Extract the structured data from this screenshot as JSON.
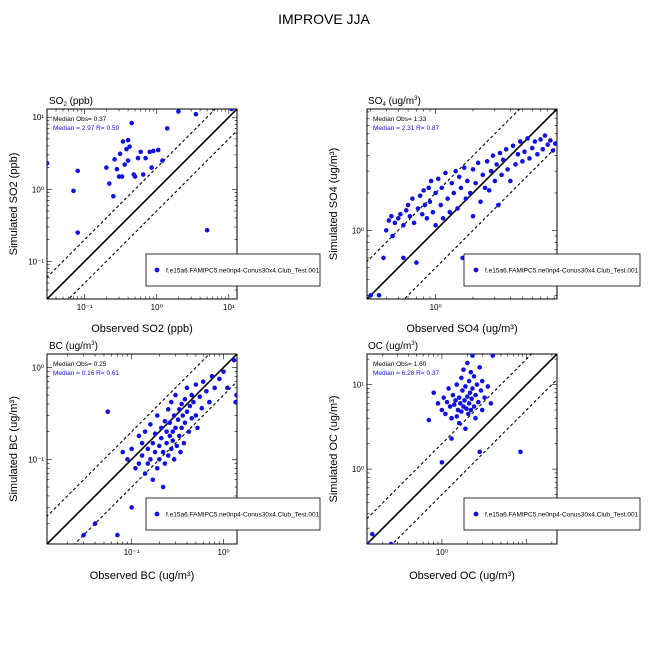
{
  "figure_title": "IMPROVE JJA",
  "colors": {
    "points": "#1010e0",
    "obs_text": "#000000",
    "sim_text": "#1010e0",
    "lines": "#000000"
  },
  "chart_data": [
    {
      "type": "scatter",
      "log_scale": true,
      "title_main": "SO",
      "title_sub": "2",
      "title_unit": " (ppb)",
      "xlabel": "Observed SO2 (ppb)",
      "ylabel": "Simulated SO2 (ppb)",
      "xlim": [
        0.03,
        13
      ],
      "ylim": [
        0.03,
        13
      ],
      "xticks": [
        {
          "v": 0.1,
          "label": "10⁻¹"
        },
        {
          "v": 1,
          "label": "10⁰"
        },
        {
          "v": 10,
          "label": "10¹"
        }
      ],
      "yticks": [
        {
          "v": 0.1,
          "label": "10⁻¹"
        },
        {
          "v": 1,
          "label": "10⁰"
        },
        {
          "v": 10,
          "label": "10¹"
        }
      ],
      "median_obs_label": "Median Obs= 0.37",
      "median_sim_label": "Median = 2.97 R= 0.59",
      "legend_label": "f.e15a6.FAMIPC5.ne0np4-Conus30x4.Club_Test.001",
      "points": [
        [
          0.03,
          2.3
        ],
        [
          0.07,
          0.95
        ],
        [
          0.08,
          0.25
        ],
        [
          0.08,
          1.8
        ],
        [
          0.2,
          2.0
        ],
        [
          0.22,
          1.2
        ],
        [
          0.25,
          0.8
        ],
        [
          0.26,
          2.6
        ],
        [
          0.28,
          1.9
        ],
        [
          0.3,
          1.5
        ],
        [
          0.31,
          3.1
        ],
        [
          0.33,
          1.5
        ],
        [
          0.34,
          4.6
        ],
        [
          0.36,
          2.2
        ],
        [
          0.38,
          3.6
        ],
        [
          0.4,
          4.8
        ],
        [
          0.4,
          2.5
        ],
        [
          0.42,
          3.9
        ],
        [
          0.45,
          8.3
        ],
        [
          0.48,
          1.6
        ],
        [
          0.5,
          1.5
        ],
        [
          0.55,
          2.7
        ],
        [
          0.6,
          3.3
        ],
        [
          0.65,
          1.6
        ],
        [
          0.7,
          2.7
        ],
        [
          0.8,
          3.3
        ],
        [
          0.85,
          2.0
        ],
        [
          0.9,
          3.4
        ],
        [
          1.05,
          3.5
        ],
        [
          1.2,
          2.5
        ],
        [
          1.4,
          7.0
        ],
        [
          2.0,
          12.0
        ],
        [
          3.5,
          11.0
        ],
        [
          5.0,
          0.27
        ],
        [
          11.0,
          13.0
        ]
      ]
    },
    {
      "type": "scatter",
      "log_scale": true,
      "title_main": "SO",
      "title_sub": "4",
      "title_unit": " (ug/m",
      "title_sup": "3",
      "title_end": ")",
      "xlabel": "Observed SO4 (ug/m³)",
      "ylabel": "Simulated SO4 (ug/m³)",
      "xlim": [
        0.28,
        9.5
      ],
      "ylim": [
        0.28,
        9.5
      ],
      "xticks": [
        {
          "v": 1,
          "label": "10⁰"
        }
      ],
      "yticks": [
        {
          "v": 1,
          "label": "10⁰"
        }
      ],
      "median_obs_label": "Median Obs= 1.33",
      "median_sim_label": "Median = 2.31 R= 0.87",
      "legend_label": "f.e15a6.FAMIPC5.ne0np4-Conus30x4.Club_Test.001",
      "points": [
        [
          0.3,
          0.3
        ],
        [
          0.35,
          0.3
        ],
        [
          0.38,
          0.6
        ],
        [
          0.4,
          1.0
        ],
        [
          0.42,
          1.2
        ],
        [
          0.44,
          1.3
        ],
        [
          0.45,
          0.9
        ],
        [
          0.47,
          1.15
        ],
        [
          0.5,
          1.25
        ],
        [
          0.52,
          1.35
        ],
        [
          0.55,
          1.1
        ],
        [
          0.55,
          0.6
        ],
        [
          0.58,
          1.45
        ],
        [
          0.6,
          1.6
        ],
        [
          0.62,
          1.3
        ],
        [
          0.65,
          1.8
        ],
        [
          0.67,
          1.15
        ],
        [
          0.7,
          0.55
        ],
        [
          0.72,
          1.5
        ],
        [
          0.75,
          1.9
        ],
        [
          0.78,
          1.35
        ],
        [
          0.8,
          2.1
        ],
        [
          0.82,
          1.6
        ],
        [
          0.85,
          1.25
        ],
        [
          0.88,
          2.2
        ],
        [
          0.9,
          1.7
        ],
        [
          0.92,
          2.5
        ],
        [
          0.95,
          1.4
        ],
        [
          1.0,
          2.0
        ],
        [
          1.0,
          1.1
        ],
        [
          1.05,
          2.6
        ],
        [
          1.1,
          1.6
        ],
        [
          1.12,
          2.2
        ],
        [
          1.15,
          1.25
        ],
        [
          1.2,
          2.9
        ],
        [
          1.25,
          1.8
        ],
        [
          1.3,
          1.4
        ],
        [
          1.35,
          2.4
        ],
        [
          1.4,
          2.0
        ],
        [
          1.45,
          3.0
        ],
        [
          1.5,
          1.5
        ],
        [
          1.55,
          2.7
        ],
        [
          1.6,
          2.2
        ],
        [
          1.65,
          0.6
        ],
        [
          1.7,
          3.2
        ],
        [
          1.75,
          1.8
        ],
        [
          1.8,
          2.5
        ],
        [
          1.9,
          2.0
        ],
        [
          2.0,
          3.1
        ],
        [
          2.0,
          1.3
        ],
        [
          2.1,
          2.4
        ],
        [
          2.2,
          3.5
        ],
        [
          2.3,
          1.7
        ],
        [
          2.4,
          2.8
        ],
        [
          2.5,
          2.2
        ],
        [
          2.6,
          3.6
        ],
        [
          2.7,
          2.1
        ],
        [
          2.8,
          3.0
        ],
        [
          2.9,
          4.0
        ],
        [
          3.0,
          2.5
        ],
        [
          3.1,
          3.4
        ],
        [
          3.2,
          1.6
        ],
        [
          3.3,
          4.2
        ],
        [
          3.4,
          2.8
        ],
        [
          3.5,
          3.7
        ],
        [
          3.7,
          4.5
        ],
        [
          3.8,
          3.1
        ],
        [
          4.0,
          2.5
        ],
        [
          4.2,
          4.8
        ],
        [
          4.4,
          3.4
        ],
        [
          4.6,
          4.1
        ],
        [
          4.8,
          5.2
        ],
        [
          5.0,
          3.6
        ],
        [
          5.2,
          4.3
        ],
        [
          5.5,
          5.5
        ],
        [
          5.7,
          3.8
        ],
        [
          6.0,
          4.6
        ],
        [
          6.3,
          5.2
        ],
        [
          6.6,
          4.1
        ],
        [
          7.0,
          5.4
        ],
        [
          7.3,
          4.5
        ],
        [
          7.6,
          5.8
        ],
        [
          8.0,
          4.9
        ],
        [
          8.4,
          5.3
        ],
        [
          8.8,
          4.4
        ],
        [
          9.2,
          5.0
        ]
      ]
    },
    {
      "type": "scatter",
      "log_scale": true,
      "title_main": "BC",
      "title_sub": "",
      "title_unit": " (ug/m",
      "title_sup": "3",
      "title_end": ")",
      "xlabel": "Observed BC (ug/m³)",
      "ylabel": "Simulated BC (ug/m³)",
      "xlim": [
        0.012,
        1.4
      ],
      "ylim": [
        0.012,
        1.4
      ],
      "xticks": [
        {
          "v": 0.1,
          "label": "10⁻¹"
        },
        {
          "v": 1,
          "label": "10⁰"
        }
      ],
      "yticks": [
        {
          "v": 0.1,
          "label": "10⁻¹"
        },
        {
          "v": 1,
          "label": "10⁰"
        }
      ],
      "median_obs_label": "Median Obs= 0.25",
      "median_sim_label": "Median = 0.16 R= 0.61",
      "legend_label": "f.e15a6.FAMIPC5.ne0np4-Conus30x4.Club_Test.001",
      "points": [
        [
          0.03,
          0.015
        ],
        [
          0.04,
          0.02
        ],
        [
          0.055,
          0.33
        ],
        [
          0.07,
          0.015
        ],
        [
          0.08,
          0.12
        ],
        [
          0.09,
          0.1
        ],
        [
          0.1,
          0.13
        ],
        [
          0.1,
          0.03
        ],
        [
          0.11,
          0.08
        ],
        [
          0.12,
          0.18
        ],
        [
          0.12,
          0.09
        ],
        [
          0.13,
          0.11
        ],
        [
          0.13,
          0.15
        ],
        [
          0.14,
          0.2
        ],
        [
          0.14,
          0.07
        ],
        [
          0.15,
          0.13
        ],
        [
          0.15,
          0.09
        ],
        [
          0.16,
          0.24
        ],
        [
          0.16,
          0.1
        ],
        [
          0.17,
          0.15
        ],
        [
          0.17,
          0.06
        ],
        [
          0.18,
          0.12
        ],
        [
          0.18,
          0.19
        ],
        [
          0.19,
          0.08
        ],
        [
          0.19,
          0.3
        ],
        [
          0.2,
          0.14
        ],
        [
          0.2,
          0.1
        ],
        [
          0.21,
          0.22
        ],
        [
          0.21,
          0.17
        ],
        [
          0.22,
          0.12
        ],
        [
          0.22,
          0.05
        ],
        [
          0.23,
          0.26
        ],
        [
          0.23,
          0.09
        ],
        [
          0.24,
          0.2
        ],
        [
          0.24,
          0.15
        ],
        [
          0.25,
          0.35
        ],
        [
          0.25,
          0.11
        ],
        [
          0.26,
          0.18
        ],
        [
          0.26,
          0.25
        ],
        [
          0.27,
          0.13
        ],
        [
          0.27,
          0.42
        ],
        [
          0.28,
          0.2
        ],
        [
          0.28,
          0.16
        ],
        [
          0.29,
          0.3
        ],
        [
          0.29,
          0.1
        ],
        [
          0.3,
          0.22
        ],
        [
          0.3,
          0.5
        ],
        [
          0.31,
          0.14
        ],
        [
          0.32,
          0.27
        ],
        [
          0.33,
          0.35
        ],
        [
          0.33,
          0.18
        ],
        [
          0.34,
          0.12
        ],
        [
          0.35,
          0.4
        ],
        [
          0.35,
          0.22
        ],
        [
          0.36,
          0.3
        ],
        [
          0.37,
          0.15
        ],
        [
          0.38,
          0.45
        ],
        [
          0.38,
          0.25
        ],
        [
          0.4,
          0.33
        ],
        [
          0.4,
          0.6
        ],
        [
          0.42,
          0.2
        ],
        [
          0.43,
          0.38
        ],
        [
          0.45,
          0.28
        ],
        [
          0.45,
          0.5
        ],
        [
          0.47,
          0.42
        ],
        [
          0.5,
          0.3
        ],
        [
          0.5,
          0.65
        ],
        [
          0.52,
          0.22
        ],
        [
          0.55,
          0.48
        ],
        [
          0.58,
          0.36
        ],
        [
          0.6,
          0.7
        ],
        [
          0.62,
          0.02
        ],
        [
          0.65,
          0.55
        ],
        [
          0.7,
          0.42
        ],
        [
          0.75,
          0.8
        ],
        [
          0.8,
          0.6
        ],
        [
          0.9,
          0.75
        ],
        [
          1.0,
          0.9
        ],
        [
          1.1,
          0.6
        ],
        [
          1.3,
          1.2
        ],
        [
          1.35,
          0.42
        ],
        [
          1.38,
          0.5
        ]
      ]
    },
    {
      "type": "scatter",
      "log_scale": true,
      "title_main": "OC",
      "title_sub": "",
      "title_unit": " (ug/m",
      "title_sup": "3",
      "title_end": ")",
      "xlabel": "Observed OC (ug/m³)",
      "ylabel": "Simulated OC (ug/m³)",
      "xlim": [
        0.13,
        23
      ],
      "ylim": [
        0.13,
        23
      ],
      "xticks": [
        {
          "v": 1,
          "label": "10⁰"
        }
      ],
      "yticks": [
        {
          "v": 1,
          "label": "10⁰"
        },
        {
          "v": 10,
          "label": "10¹"
        }
      ],
      "median_obs_label": "Median Obs= 1.60",
      "median_sim_label": "Median = 6.28 R= 0.37",
      "legend_label": "f.e15a6.FAMIPC5.ne0np4-Conus30x4.Club_Test.001",
      "points": [
        [
          0.13,
          0.13
        ],
        [
          0.15,
          0.17
        ],
        [
          0.25,
          0.13
        ],
        [
          0.7,
          3.8
        ],
        [
          0.8,
          8.0
        ],
        [
          0.9,
          6.0
        ],
        [
          1.0,
          1.2
        ],
        [
          1.0,
          5.0
        ],
        [
          1.05,
          7.0
        ],
        [
          1.1,
          4.5
        ],
        [
          1.15,
          6.2
        ],
        [
          1.2,
          9.0
        ],
        [
          1.25,
          5.5
        ],
        [
          1.3,
          2.3
        ],
        [
          1.3,
          4.0
        ],
        [
          1.35,
          7.5
        ],
        [
          1.4,
          5.8
        ],
        [
          1.45,
          6.5
        ],
        [
          1.5,
          4.2
        ],
        [
          1.5,
          10.0
        ],
        [
          1.55,
          5.0
        ],
        [
          1.6,
          7.0
        ],
        [
          1.6,
          3.5
        ],
        [
          1.65,
          6.0
        ],
        [
          1.7,
          12.0
        ],
        [
          1.7,
          4.8
        ],
        [
          1.75,
          8.5
        ],
        [
          1.8,
          5.5
        ],
        [
          1.8,
          15.0
        ],
        [
          1.85,
          6.5
        ],
        [
          1.9,
          3.0
        ],
        [
          1.9,
          9.5
        ],
        [
          1.95,
          5.2
        ],
        [
          2.0,
          7.2
        ],
        [
          2.0,
          18.0
        ],
        [
          2.05,
          4.5
        ],
        [
          2.1,
          11.0
        ],
        [
          2.1,
          6.0
        ],
        [
          2.15,
          8.0
        ],
        [
          2.2,
          5.0
        ],
        [
          2.2,
          14.0
        ],
        [
          2.25,
          6.8
        ],
        [
          2.3,
          22.0
        ],
        [
          2.3,
          9.0
        ],
        [
          2.4,
          5.5
        ],
        [
          2.4,
          12.5
        ],
        [
          2.5,
          7.5
        ],
        [
          2.5,
          4.0
        ],
        [
          2.6,
          10.0
        ],
        [
          2.7,
          6.2
        ],
        [
          2.8,
          16.0
        ],
        [
          2.9,
          8.5
        ],
        [
          3.0,
          5.0
        ],
        [
          3.0,
          11.0
        ],
        [
          3.2,
          7.0
        ],
        [
          3.5,
          9.5
        ],
        [
          3.8,
          6.0
        ],
        [
          4.0,
          22.0
        ],
        [
          2.8,
          1.6
        ],
        [
          8.5,
          1.6
        ]
      ]
    }
  ]
}
